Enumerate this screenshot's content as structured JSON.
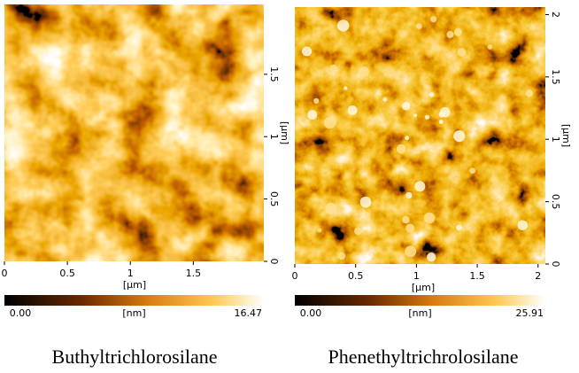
{
  "panels": [
    {
      "x_ticks": [
        0,
        0.5,
        1,
        1.5
      ],
      "y_ticks": [
        0,
        0.5,
        1,
        1.5
      ],
      "range": [
        0,
        2.06
      ],
      "x_unit": "[μm]",
      "y_unit": "[μm]",
      "colorbar": {
        "min_label": "0.00",
        "unit": "[nm]",
        "max_label": "16.47"
      },
      "caption": "Buthyltrichlorosilane"
    },
    {
      "x_ticks": [
        0,
        0.5,
        1,
        1.5,
        2
      ],
      "y_ticks": [
        0,
        0.5,
        1,
        1.5,
        2
      ],
      "range": [
        0,
        2.06
      ],
      "x_unit": "[μm]",
      "y_unit": "[μm]",
      "colorbar": {
        "min_label": "0.00",
        "unit": "[nm]",
        "max_label": "25.91"
      },
      "caption": "Phenethyltrichrolosilane"
    }
  ]
}
